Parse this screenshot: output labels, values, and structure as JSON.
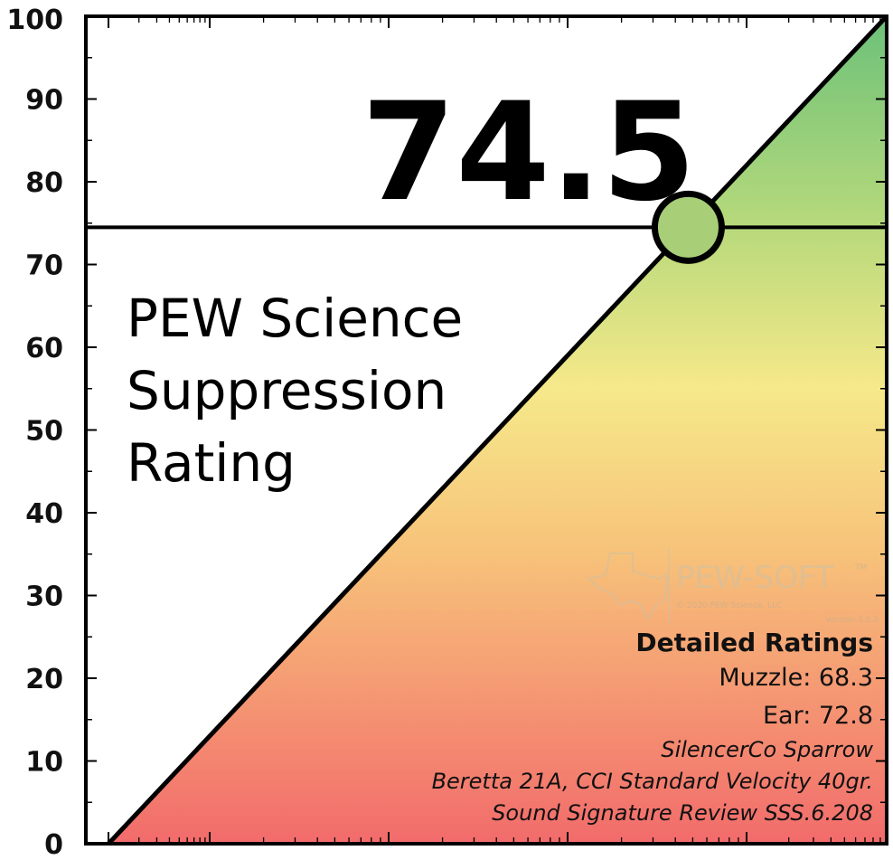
{
  "chart_data": {
    "type": "line",
    "title": "PEW Science Suppression Rating",
    "title_lines": [
      "PEW Science",
      "Suppression",
      "Rating"
    ],
    "score_label": "74.5",
    "score": 74.5,
    "ylim": [
      0,
      100
    ],
    "y_ticks": [
      "0",
      "10",
      "20",
      "30",
      "40",
      "50",
      "60",
      "70",
      "80",
      "90",
      "100"
    ],
    "xlim": [
      0,
      100
    ],
    "x_scale": "log-style minor ticks",
    "series": [
      {
        "x": [
          0,
          100
        ],
        "y": [
          0,
          100
        ]
      }
    ],
    "reference_line_y": 74.5,
    "marker": {
      "x": 74.5,
      "y": 74.5
    },
    "gradient": [
      "#f26b6b",
      "#f7c27a",
      "#f6e98a",
      "#b6d97b",
      "#6cc17a"
    ],
    "grid": false
  },
  "details": {
    "heading": "Detailed Ratings",
    "muzzle": "Muzzle: 68.3",
    "ear": "Ear: 72.8",
    "suppressor": "SilencerCo Sparrow",
    "host": "Beretta 21A, CCI Standard Velocity 40gr.",
    "review": "Sound Signature Review SSS.6.208"
  },
  "watermark": {
    "brand": "PEW-SOFT",
    "tm": "TM",
    "copyright": "© 2020 PEW Science, LLC",
    "version": "Version 1.0.2"
  }
}
